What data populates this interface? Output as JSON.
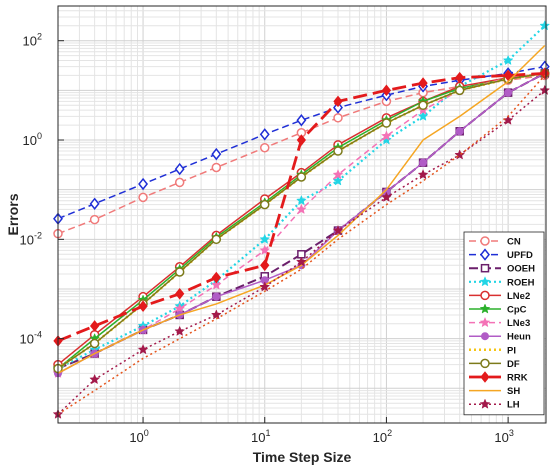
{
  "chart_data": {
    "type": "line",
    "xlabel": "Time Step Size",
    "ylabel": "Errors",
    "xscale": "log",
    "yscale": "log",
    "xlim": [
      0.2,
      2048
    ],
    "ylim": [
      2e-06,
      500
    ],
    "grid": "on",
    "legend_position": "bottom-right",
    "x_ticks": [
      {
        "v": 1,
        "base": "10",
        "exp": "0"
      },
      {
        "v": 10,
        "base": "10",
        "exp": "1"
      },
      {
        "v": 100,
        "base": "10",
        "exp": "2"
      },
      {
        "v": 1000,
        "base": "10",
        "exp": "3"
      }
    ],
    "y_ticks": [
      {
        "v": 0.0001,
        "base": "10",
        "exp": "-4"
      },
      {
        "v": 0.01,
        "base": "10",
        "exp": "-2"
      },
      {
        "v": 1,
        "base": "10",
        "exp": "0"
      },
      {
        "v": 100,
        "base": "10",
        "exp": "2"
      }
    ],
    "x": [
      0.2,
      0.4,
      1,
      2,
      4,
      10,
      20,
      40,
      100,
      200,
      400,
      1000,
      2000
    ],
    "series": [
      {
        "name": "CN",
        "color": "#f07a7a",
        "dash": "7,4",
        "width": 1.5,
        "marker": "circle-open",
        "x": [
          0.2,
          0.4,
          1,
          2,
          4,
          10,
          20,
          40,
          100,
          200,
          400,
          1000,
          2000
        ],
        "values": [
          0.013,
          0.025,
          0.07,
          0.14,
          0.28,
          0.7,
          1.4,
          2.8,
          6,
          9,
          12,
          16,
          20
        ]
      },
      {
        "name": "UPFD",
        "color": "#1f2fd6",
        "dash": "7,4",
        "width": 1.5,
        "marker": "diamond-open",
        "x": [
          0.2,
          0.4,
          1,
          2,
          4,
          10,
          20,
          40,
          100,
          200,
          400,
          1000,
          2000
        ],
        "values": [
          0.026,
          0.052,
          0.13,
          0.26,
          0.52,
          1.3,
          2.5,
          4.5,
          8,
          12,
          16,
          22,
          30
        ]
      },
      {
        "name": "OOEH",
        "color": "#6b1f6b",
        "dash": "9,4",
        "width": 2,
        "marker": "square-open",
        "x": [
          0.2,
          0.4,
          1,
          2,
          4,
          10,
          20,
          40,
          100,
          200,
          400,
          1000,
          2000
        ],
        "values": [
          2.5e-05,
          5e-05,
          0.00015,
          0.0003,
          0.0007,
          0.0018,
          0.005,
          0.015,
          0.09,
          0.35,
          1.5,
          9,
          22
        ]
      },
      {
        "name": "ROEH",
        "color": "#22d5e5",
        "dash": "2,3",
        "width": 2.2,
        "marker": "star-filled",
        "x": [
          0.2,
          0.4,
          1,
          2,
          4,
          10,
          20,
          40,
          100,
          200,
          400,
          1000,
          2000
        ],
        "values": [
          2.5e-05,
          6e-05,
          0.00018,
          0.00045,
          0.0015,
          0.01,
          0.06,
          0.15,
          1.0,
          3,
          12,
          40,
          200
        ]
      },
      {
        "name": "LNe2",
        "color": "#d93030",
        "dash": "",
        "width": 1.5,
        "marker": "circle-open",
        "x": [
          0.2,
          0.4,
          1,
          2,
          4,
          10,
          20,
          40,
          100,
          200,
          400,
          1000,
          2000
        ],
        "values": [
          3e-05,
          0.00012,
          0.0007,
          0.0028,
          0.012,
          0.065,
          0.22,
          0.8,
          2.8,
          6,
          12,
          18,
          22
        ]
      },
      {
        "name": "CpC",
        "color": "#2bb02b",
        "dash": "",
        "width": 1.5,
        "marker": "star-filled",
        "x": [
          0.2,
          0.4,
          1,
          2,
          4,
          10,
          20,
          40,
          100,
          200,
          400,
          1000,
          2000
        ],
        "values": [
          2.5e-05,
          0.0001,
          0.0006,
          0.0025,
          0.011,
          0.055,
          0.2,
          0.7,
          2.5,
          6,
          11,
          17,
          22
        ]
      },
      {
        "name": "LNe3",
        "color": "#f472b6",
        "dash": "6,4",
        "width": 1.5,
        "marker": "star-filled",
        "x": [
          0.2,
          0.4,
          1,
          2,
          4,
          10,
          20,
          40,
          100,
          200,
          400,
          1000,
          2000
        ],
        "values": [
          2e-05,
          5e-05,
          0.00015,
          0.0004,
          0.0012,
          0.006,
          0.04,
          0.2,
          1.2,
          4,
          10,
          18,
          22
        ]
      },
      {
        "name": "Heun",
        "color": "#b15cc6",
        "dash": "",
        "width": 1.5,
        "marker": "circle-filled",
        "x": [
          0.2,
          0.4,
          1,
          2,
          4,
          10,
          20,
          40,
          100,
          200,
          400,
          1000,
          2000
        ],
        "values": [
          2e-05,
          5e-05,
          0.00015,
          0.0003,
          0.0007,
          0.0015,
          0.003,
          0.015,
          0.09,
          0.35,
          1.5,
          9,
          22
        ]
      },
      {
        "name": "PI",
        "color": "#f5c516",
        "dash": "2,3",
        "width": 2.5,
        "marker": "none",
        "x": [
          0.2,
          0.4,
          1,
          2,
          4,
          10,
          20,
          40,
          100,
          200,
          400,
          1000,
          2000
        ],
        "values": [
          2.5e-05,
          8e-05,
          0.0005,
          0.0022,
          0.01,
          0.05,
          0.18,
          0.6,
          2.2,
          5,
          10,
          17,
          22
        ]
      },
      {
        "name": "DF",
        "color": "#7c7a1a",
        "dash": "",
        "width": 1.5,
        "marker": "circle-open",
        "x": [
          0.2,
          0.4,
          1,
          2,
          4,
          10,
          20,
          40,
          100,
          200,
          400,
          1000,
          2000
        ],
        "values": [
          2.5e-05,
          8e-05,
          0.0005,
          0.0022,
          0.01,
          0.05,
          0.18,
          0.6,
          2.2,
          5,
          10,
          17,
          22
        ]
      },
      {
        "name": "RRK",
        "color": "#e31a1c",
        "dash": "14,6",
        "width": 2.8,
        "marker": "diamond-filled",
        "x": [
          0.2,
          0.4,
          1,
          2,
          4,
          10,
          20,
          40,
          100,
          200,
          400,
          1000,
          2000
        ],
        "values": [
          9e-05,
          0.00018,
          0.00045,
          0.0008,
          0.0017,
          0.003,
          1.0,
          6,
          10,
          14,
          18,
          20,
          22
        ]
      },
      {
        "name": "SH",
        "color": "#f5a623",
        "dash": "",
        "width": 1.5,
        "marker": "none",
        "x": [
          0.2,
          0.4,
          1,
          2,
          4,
          10,
          20,
          40,
          100,
          200,
          400,
          1000,
          2000
        ],
        "values": [
          2e-05,
          5e-05,
          0.00015,
          0.0003,
          0.0005,
          0.0012,
          0.003,
          0.012,
          0.1,
          1,
          3,
          15,
          80
        ]
      },
      {
        "name": "LH",
        "color": "#a3194a",
        "dash": "2,3",
        "width": 1.5,
        "marker": "star-filled",
        "x": [
          0.2,
          0.4,
          1,
          2,
          4,
          10,
          20,
          40,
          100,
          200,
          400,
          1000,
          2000
        ],
        "values": [
          3e-06,
          1.5e-05,
          6e-05,
          0.00014,
          0.0003,
          0.0011,
          0.0035,
          0.015,
          0.07,
          0.2,
          0.5,
          2.5,
          10
        ]
      },
      {
        "name": "",
        "color": "#e5541b",
        "dash": "2,3",
        "width": 1.5,
        "marker": "none",
        "x": [
          0.2,
          0.4,
          1,
          2,
          4,
          10,
          20,
          40,
          100,
          200,
          400,
          1000,
          2000
        ],
        "values": [
          3e-06,
          9e-06,
          4e-05,
          0.0001,
          0.00025,
          0.0009,
          0.0025,
          0.01,
          0.05,
          0.15,
          0.5,
          3,
          20
        ]
      }
    ]
  }
}
